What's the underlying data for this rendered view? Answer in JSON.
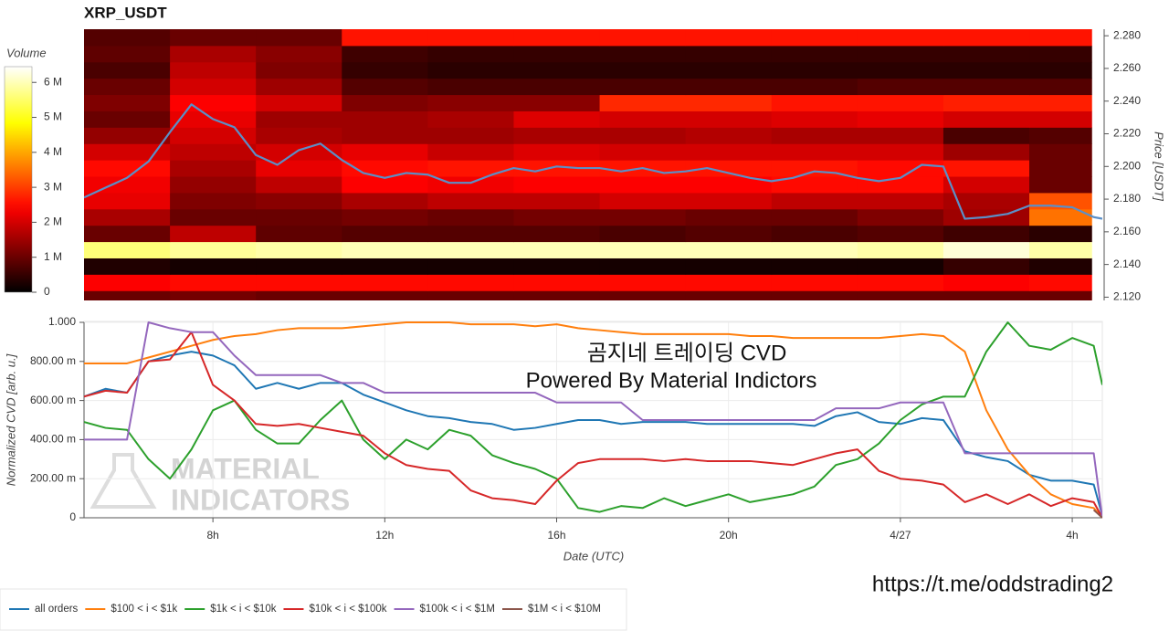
{
  "annotations": {
    "cvd_title": "곰지네 트레이딩 CVD",
    "powered_by": "Powered By Material Indictors",
    "url": "https://t.me/oddstrading2",
    "logo": [
      "MATERIAL",
      "INDICATORS"
    ]
  },
  "chart_data": [
    {
      "type": "heatmap",
      "title": "XRP_USDT",
      "colormap": "hot",
      "colorbar_label": "Volume",
      "clim": [
        0,
        6450000
      ],
      "cticks": [
        0,
        {
          "value": 1000000,
          "label": "1 M"
        },
        {
          "value": 2000000,
          "label": "2 M"
        },
        {
          "value": 3000000,
          "label": "3 M"
        },
        {
          "value": 4000000,
          "label": "4 M"
        },
        {
          "value": 5000000,
          "label": "5 M"
        },
        {
          "value": 6000000,
          "label": "6 M"
        }
      ],
      "ylabel": "Price [USDT]",
      "xlim": [
        5,
        28.7
      ],
      "ylim": [
        2.118,
        2.284
      ],
      "yticks": [
        {
          "value": 2.12,
          "label": "2.120"
        },
        {
          "value": 2.14,
          "label": "2.140"
        },
        {
          "value": 2.16,
          "label": "2.160"
        },
        {
          "value": 2.18,
          "label": "2.180"
        },
        {
          "value": 2.2,
          "label": "2.200"
        },
        {
          "value": 2.22,
          "label": "2.220"
        },
        {
          "value": 2.24,
          "label": "2.240"
        },
        {
          "value": 2.26,
          "label": "2.260"
        },
        {
          "value": 2.28,
          "label": "2.280"
        }
      ],
      "x_edges": [
        5,
        7,
        9,
        11,
        13,
        15,
        17,
        19,
        21,
        23,
        25,
        27,
        28.45
      ],
      "y_edges": [
        2.118,
        2.124,
        2.134,
        2.144,
        2.154,
        2.164,
        2.174,
        2.184,
        2.194,
        2.204,
        2.214,
        2.224,
        2.234,
        2.244,
        2.254,
        2.264,
        2.274,
        2.284
      ],
      "z": [
        [
          1000000,
          1100000,
          1000000,
          1000000,
          1000000,
          1000000,
          1000000,
          1000000,
          1000000,
          1000000,
          1000000,
          1000000
        ],
        [
          2400000,
          2500000,
          2500000,
          2500000,
          2500000,
          2500000,
          2500000,
          2500000,
          2500000,
          2500000,
          2400000,
          2500000
        ],
        [
          300000,
          200000,
          200000,
          200000,
          200000,
          200000,
          200000,
          200000,
          200000,
          200000,
          500000,
          300000
        ],
        [
          5600000,
          5800000,
          5900000,
          6000000,
          6000000,
          6000000,
          6000000,
          6000000,
          6000000,
          5900000,
          6200000,
          5900000
        ],
        [
          1000000,
          1800000,
          900000,
          800000,
          800000,
          800000,
          700000,
          800000,
          700000,
          800000,
          600000,
          400000
        ],
        [
          1600000,
          1000000,
          1000000,
          1100000,
          1000000,
          1100000,
          1100000,
          1000000,
          1000000,
          1200000,
          1500000,
          3500000
        ],
        [
          2200000,
          1200000,
          1300000,
          1600000,
          1800000,
          1800000,
          2000000,
          2000000,
          1800000,
          1800000,
          1600000,
          3200000
        ],
        [
          2300000,
          1400000,
          1800000,
          2400000,
          2300000,
          2400000,
          2400000,
          2400000,
          2500000,
          2500000,
          2000000,
          1000000
        ],
        [
          2500000,
          1600000,
          2200000,
          2500000,
          2600000,
          2600000,
          2600000,
          2600000,
          2600000,
          2500000,
          2600000,
          1000000
        ],
        [
          2000000,
          1800000,
          2000000,
          2200000,
          1900000,
          2100000,
          2000000,
          2000000,
          2000000,
          2000000,
          1500000,
          1000000
        ],
        [
          1400000,
          2000000,
          1600000,
          1500000,
          1500000,
          1600000,
          1600000,
          1700000,
          1600000,
          1600000,
          700000,
          800000
        ],
        [
          1000000,
          2200000,
          1500000,
          1500000,
          1600000,
          2100000,
          2000000,
          2000000,
          2100000,
          2200000,
          2000000,
          2000000
        ],
        [
          1200000,
          2400000,
          2000000,
          1200000,
          1300000,
          1300000,
          2800000,
          2800000,
          2600000,
          2600000,
          2700000,
          2700000
        ],
        [
          1000000,
          2000000,
          1500000,
          800000,
          700000,
          700000,
          700000,
          700000,
          700000,
          800000,
          800000,
          800000
        ],
        [
          700000,
          1800000,
          1200000,
          500000,
          400000,
          400000,
          400000,
          400000,
          400000,
          400000,
          400000,
          400000
        ],
        [
          900000,
          1600000,
          1300000,
          600000,
          500000,
          500000,
          500000,
          500000,
          500000,
          500000,
          500000,
          500000
        ],
        [
          800000,
          1000000,
          1000000,
          2600000,
          2600000,
          2600000,
          2600000,
          2600000,
          2600000,
          2600000,
          2600000,
          2600000
        ]
      ],
      "line": {
        "color": "#5b8fc7",
        "x": [
          5,
          5.5,
          6,
          6.5,
          7,
          7.5,
          8,
          8.5,
          9,
          9.5,
          10,
          10.5,
          11,
          11.5,
          12,
          12.5,
          13,
          13.5,
          14,
          14.5,
          15,
          15.5,
          16,
          16.5,
          17,
          17.5,
          18,
          18.5,
          19,
          19.5,
          20,
          20.5,
          21,
          21.5,
          22,
          22.5,
          23,
          23.5,
          24,
          24.5,
          25,
          25.5,
          26,
          26.5,
          27,
          27.5,
          28,
          28.5,
          28.7
        ],
        "values": [
          2.181,
          2.187,
          2.193,
          2.203,
          2.221,
          2.238,
          2.229,
          2.224,
          2.207,
          2.201,
          2.21,
          2.214,
          2.204,
          2.196,
          2.193,
          2.196,
          2.195,
          2.19,
          2.19,
          2.195,
          2.199,
          2.197,
          2.2,
          2.199,
          2.199,
          2.197,
          2.199,
          2.196,
          2.197,
          2.199,
          2.196,
          2.193,
          2.191,
          2.193,
          2.197,
          2.196,
          2.193,
          2.191,
          2.193,
          2.201,
          2.2,
          2.168,
          2.169,
          2.171,
          2.176,
          2.176,
          2.175,
          2.169,
          2.168
        ]
      }
    },
    {
      "type": "line",
      "ylabel": "Normalized CVD [arb. u.]",
      "xlabel": "Date (UTC)",
      "grid": true,
      "legend": "bottom-left",
      "xlim": [
        5,
        28.7
      ],
      "ylim": [
        0,
        1
      ],
      "xticks": [
        {
          "value": 8,
          "label": "8h"
        },
        {
          "value": 12,
          "label": "12h"
        },
        {
          "value": 16,
          "label": "16h"
        },
        {
          "value": 20,
          "label": "20h"
        },
        {
          "value": 24,
          "label": "4/27"
        },
        {
          "value": 28,
          "label": "4h"
        }
      ],
      "yticks": [
        0,
        {
          "value": 0.2,
          "label": "200.00 m"
        },
        {
          "value": 0.4,
          "label": "400.00 m"
        },
        {
          "value": 0.6,
          "label": "600.00 m"
        },
        {
          "value": 0.8,
          "label": "800.00 m"
        },
        {
          "value": 1,
          "label": "1.000"
        }
      ],
      "x": [
        5,
        5.5,
        6,
        6.5,
        7,
        7.5,
        8,
        8.5,
        9,
        9.5,
        10,
        10.5,
        11,
        11.5,
        12,
        12.5,
        13,
        13.5,
        14,
        14.5,
        15,
        15.5,
        16,
        16.5,
        17,
        17.5,
        18,
        18.5,
        19,
        19.5,
        20,
        20.5,
        21,
        21.5,
        22,
        22.5,
        23,
        23.5,
        24,
        24.5,
        25,
        25.5,
        26,
        26.5,
        27,
        27.5,
        28,
        28.5,
        28.7
      ],
      "series": [
        {
          "name": "all orders",
          "color": "#1f77b4",
          "values": [
            0.62,
            0.66,
            0.64,
            0.8,
            0.83,
            0.85,
            0.83,
            0.78,
            0.66,
            0.69,
            0.66,
            0.69,
            0.69,
            0.63,
            0.59,
            0.55,
            0.52,
            0.51,
            0.49,
            0.48,
            0.45,
            0.46,
            0.48,
            0.5,
            0.5,
            0.48,
            0.49,
            0.49,
            0.49,
            0.48,
            0.48,
            0.48,
            0.48,
            0.48,
            0.47,
            0.52,
            0.54,
            0.49,
            0.48,
            0.51,
            0.5,
            0.34,
            0.31,
            0.29,
            0.22,
            0.19,
            0.19,
            0.17,
            0.01
          ]
        },
        {
          "name": "$100 < i < $1k",
          "color": "#ff7f0e",
          "values": [
            0.79,
            0.79,
            0.79,
            0.82,
            0.85,
            0.88,
            0.91,
            0.93,
            0.94,
            0.96,
            0.97,
            0.97,
            0.97,
            0.98,
            0.99,
            1.0,
            1.0,
            1.0,
            0.99,
            0.99,
            0.99,
            0.98,
            0.99,
            0.97,
            0.96,
            0.95,
            0.94,
            0.94,
            0.94,
            0.94,
            0.94,
            0.93,
            0.93,
            0.92,
            0.92,
            0.92,
            0.92,
            0.92,
            0.93,
            0.94,
            0.93,
            0.85,
            0.55,
            0.35,
            0.22,
            0.12,
            0.07,
            0.05,
            0
          ]
        },
        {
          "name": "$1k < i < $10k",
          "color": "#2ca02c",
          "values": [
            0.49,
            0.46,
            0.45,
            0.3,
            0.2,
            0.35,
            0.55,
            0.6,
            0.45,
            0.38,
            0.38,
            0.5,
            0.6,
            0.4,
            0.3,
            0.4,
            0.35,
            0.45,
            0.42,
            0.32,
            0.28,
            0.25,
            0.2,
            0.05,
            0.03,
            0.06,
            0.05,
            0.1,
            0.06,
            0.09,
            0.12,
            0.08,
            0.1,
            0.12,
            0.16,
            0.27,
            0.3,
            0.38,
            0.5,
            0.58,
            0.62,
            0.62,
            0.85,
            1.0,
            0.88,
            0.86,
            0.92,
            0.88,
            0.68
          ]
        },
        {
          "name": "$10k < i < $100k",
          "color": "#d62728",
          "values": [
            0.62,
            0.65,
            0.64,
            0.8,
            0.81,
            0.95,
            0.68,
            0.6,
            0.48,
            0.47,
            0.48,
            0.46,
            0.44,
            0.42,
            0.33,
            0.27,
            0.25,
            0.24,
            0.14,
            0.1,
            0.09,
            0.07,
            0.19,
            0.28,
            0.3,
            0.3,
            0.3,
            0.29,
            0.3,
            0.29,
            0.29,
            0.29,
            0.28,
            0.27,
            0.3,
            0.33,
            0.35,
            0.24,
            0.2,
            0.19,
            0.17,
            0.08,
            0.12,
            0.07,
            0.12,
            0.06,
            0.1,
            0.08,
            0
          ]
        },
        {
          "name": "$100k < i < $1M",
          "color": "#9467bd",
          "values": [
            0.4,
            0.4,
            0.4,
            1.0,
            0.97,
            0.95,
            0.95,
            0.83,
            0.73,
            0.73,
            0.73,
            0.73,
            0.69,
            0.69,
            0.64,
            0.64,
            0.64,
            0.64,
            0.64,
            0.64,
            0.64,
            0.64,
            0.59,
            0.59,
            0.59,
            0.59,
            0.5,
            0.5,
            0.5,
            0.5,
            0.5,
            0.5,
            0.5,
            0.5,
            0.5,
            0.56,
            0.56,
            0.56,
            0.59,
            0.59,
            0.59,
            0.33,
            0.33,
            0.33,
            0.33,
            0.33,
            0.33,
            0.33,
            0
          ]
        },
        {
          "name": "$1M < i < $10M",
          "color": "#8c564b",
          "values": [
            null,
            null,
            null,
            null,
            null,
            null,
            null,
            null,
            null,
            null,
            null,
            null,
            null,
            null,
            null,
            null,
            null,
            null,
            null,
            null,
            null,
            null,
            null,
            null,
            null,
            null,
            null,
            null,
            null,
            null,
            null,
            null,
            null,
            null,
            null,
            null,
            null,
            null,
            null,
            null,
            null,
            null,
            null,
            null,
            null,
            null,
            null,
            0.04,
            0
          ]
        }
      ]
    }
  ]
}
